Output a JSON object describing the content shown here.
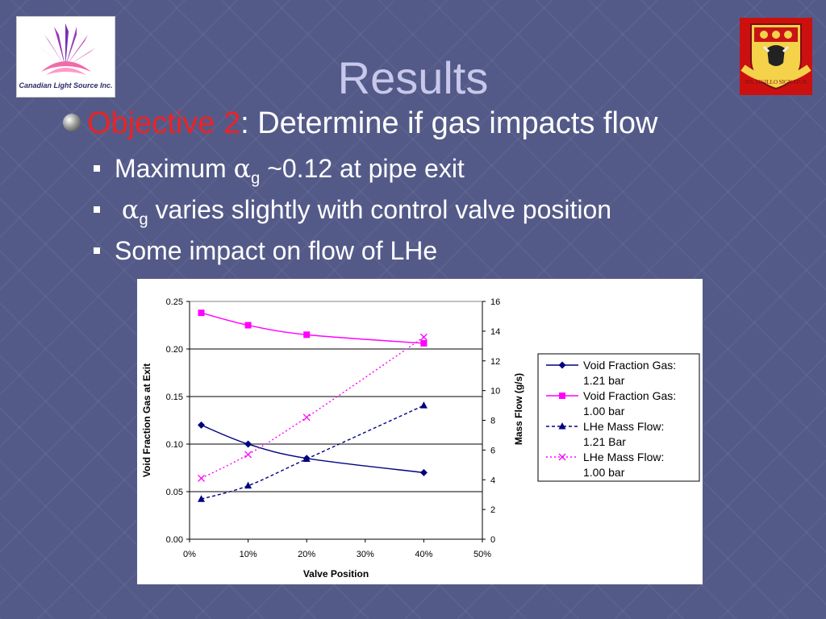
{
  "logo_left_caption": "Canadian Light Source Inc.",
  "crest_motto": "NIL SIGILLO SIGNATUR",
  "slide_title": "Results",
  "objective": {
    "label": "Objective 2",
    "text": ": Determine if gas impacts flow"
  },
  "bullets": {
    "b1_prefix": "Maximum ",
    "b1_alpha": "α",
    "b1_sub": "g",
    "b1_suffix": "  ~0.12 at pipe exit",
    "b2_alpha": "α",
    "b2_sub": "g",
    "b2_suffix": " varies slightly with control valve position",
    "b3": "Some impact on flow of LHe"
  },
  "colors": {
    "navy": "#000080",
    "magenta": "#ff00ff",
    "title": "#c8c8ec",
    "objective": "#ee2222"
  },
  "chart_data": {
    "type": "line",
    "xlabel": "Valve Position",
    "ylabel": "Void Fraction Gas at Exit",
    "y2label": "Mass Flow (g/s)",
    "xlim": [
      0,
      50
    ],
    "ylim": [
      0,
      0.25
    ],
    "y2lim": [
      0,
      16
    ],
    "x_ticks": [
      0,
      10,
      20,
      30,
      40,
      50
    ],
    "x_tick_labels": [
      "0%",
      "10%",
      "20%",
      "30%",
      "40%",
      "50%"
    ],
    "y_ticks": [
      0,
      0.05,
      0.1,
      0.15,
      0.2,
      0.25
    ],
    "y_tick_labels": [
      "0.00",
      "0.05",
      "0.10",
      "0.15",
      "0.20",
      "0.25"
    ],
    "y2_ticks": [
      0,
      2,
      4,
      6,
      8,
      10,
      12,
      14,
      16
    ],
    "y2_tick_labels": [
      "0",
      "2",
      "4",
      "6",
      "8",
      "10",
      "12",
      "14",
      "16"
    ],
    "grid": "horizontal",
    "legend_position": "right",
    "series": [
      {
        "name": "Void Fraction Gas: 1.21 bar",
        "name_lines": [
          "Void Fraction Gas:",
          "1.21 bar"
        ],
        "axis": "left",
        "color": "#000080",
        "marker": "diamond",
        "dash": "solid",
        "x": [
          2,
          10,
          20,
          40
        ],
        "y": [
          0.12,
          0.1,
          0.085,
          0.07
        ]
      },
      {
        "name": "Void Fraction Gas: 1.00 bar",
        "name_lines": [
          "Void Fraction Gas:",
          "1.00 bar"
        ],
        "axis": "left",
        "color": "#ff00ff",
        "marker": "square",
        "dash": "solid",
        "x": [
          2,
          10,
          20,
          40
        ],
        "y": [
          0.238,
          0.225,
          0.215,
          0.206
        ]
      },
      {
        "name": "LHe Mass Flow: 1.21 Bar",
        "name_lines": [
          "LHe Mass Flow:",
          "1.21 Bar"
        ],
        "axis": "right",
        "color": "#000080",
        "marker": "triangle",
        "dash": "dashed",
        "x": [
          2,
          10,
          20,
          40
        ],
        "y": [
          2.7,
          3.6,
          5.4,
          9.0
        ]
      },
      {
        "name": "LHe Mass Flow: 1.00 bar",
        "name_lines": [
          "LHe Mass Flow:",
          "1.00 bar"
        ],
        "axis": "right",
        "color": "#ff00ff",
        "marker": "x",
        "dash": "dotted",
        "x": [
          2,
          10,
          20,
          40
        ],
        "y": [
          4.1,
          5.7,
          8.2,
          13.6
        ]
      }
    ]
  }
}
